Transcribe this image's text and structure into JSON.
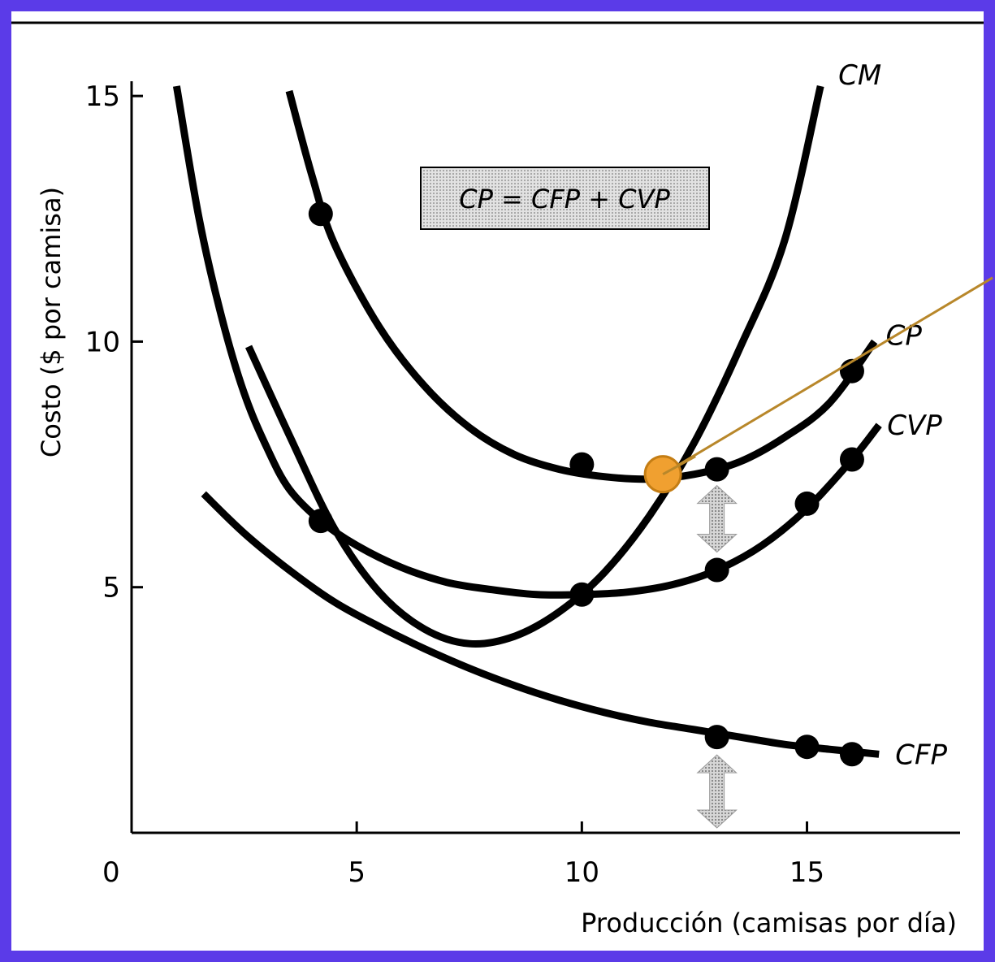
{
  "chart_data": {
    "type": "line",
    "xlabel": "Producción (camisas por día)",
    "ylabel": "Costo ($ por camisa)",
    "origin_label": "0",
    "xlim": [
      0,
      18.4
    ],
    "ylim": [
      0,
      15.3
    ],
    "xticks": [
      5,
      10,
      15
    ],
    "yticks": [
      5,
      10,
      15
    ],
    "xtick_labels": [
      "5",
      "10",
      "15"
    ],
    "ytick_labels": [
      "5",
      "10",
      "15"
    ],
    "grid": false,
    "annotation": "CP = CFP + CVP",
    "highlight_point": {
      "x": 11.8,
      "y": 7.3,
      "color": "#f0a030"
    },
    "pointer_line_end": {
      "x": 18.4,
      "y": 11.3,
      "color": "#b8872a"
    },
    "arrow_marker_x": 13,
    "series": [
      {
        "name": "CM",
        "curve": [
          [
            2.6,
            9.9
          ],
          [
            3.5,
            8.1
          ],
          [
            4.5,
            6.2
          ],
          [
            5.5,
            4.9
          ],
          [
            6.5,
            4.15
          ],
          [
            7.5,
            3.85
          ],
          [
            8.5,
            4.0
          ],
          [
            9.5,
            4.5
          ],
          [
            10.5,
            5.3
          ],
          [
            11.5,
            6.45
          ],
          [
            12.5,
            7.95
          ],
          [
            13.5,
            9.85
          ],
          [
            14.5,
            12.05
          ],
          [
            15.3,
            15.2
          ]
        ],
        "points": []
      },
      {
        "name": "CP",
        "curve": [
          [
            3.5,
            15.1
          ],
          [
            4.0,
            13.4
          ],
          [
            4.5,
            12.0
          ],
          [
            5.5,
            10.3
          ],
          [
            6.5,
            9.1
          ],
          [
            7.5,
            8.25
          ],
          [
            8.5,
            7.7
          ],
          [
            9.5,
            7.4
          ],
          [
            10.5,
            7.25
          ],
          [
            11.5,
            7.2
          ],
          [
            12.5,
            7.3
          ],
          [
            13.5,
            7.55
          ],
          [
            14.5,
            8.05
          ],
          [
            15.5,
            8.75
          ],
          [
            16.5,
            10.0
          ]
        ],
        "points": [
          [
            4.2,
            12.6
          ],
          [
            10.0,
            7.5
          ],
          [
            13.0,
            7.4
          ],
          [
            16.0,
            9.4
          ]
        ]
      },
      {
        "name": "CVP",
        "curve": [
          [
            1.0,
            15.2
          ],
          [
            1.5,
            12.5
          ],
          [
            2.0,
            10.5
          ],
          [
            2.5,
            8.95
          ],
          [
            3.0,
            7.85
          ],
          [
            3.5,
            7.0
          ],
          [
            4.2,
            6.35
          ],
          [
            5.0,
            5.85
          ],
          [
            6.0,
            5.4
          ],
          [
            7.0,
            5.1
          ],
          [
            8.0,
            4.95
          ],
          [
            9.0,
            4.85
          ],
          [
            10.0,
            4.85
          ],
          [
            11.0,
            4.9
          ],
          [
            12.0,
            5.05
          ],
          [
            13.0,
            5.35
          ],
          [
            14.0,
            5.85
          ],
          [
            15.0,
            6.6
          ],
          [
            16.0,
            7.6
          ],
          [
            16.6,
            8.3
          ]
        ],
        "points": [
          [
            4.2,
            6.35
          ],
          [
            10.0,
            4.85
          ],
          [
            13.0,
            5.35
          ],
          [
            15.0,
            6.7
          ],
          [
            16.0,
            7.6
          ]
        ]
      },
      {
        "name": "CFP",
        "curve": [
          [
            1.6,
            6.9
          ],
          [
            2.5,
            6.1
          ],
          [
            3.5,
            5.35
          ],
          [
            4.5,
            4.7
          ],
          [
            5.5,
            4.2
          ],
          [
            6.5,
            3.75
          ],
          [
            7.5,
            3.35
          ],
          [
            8.5,
            3.0
          ],
          [
            9.5,
            2.7
          ],
          [
            10.5,
            2.45
          ],
          [
            11.5,
            2.25
          ],
          [
            12.5,
            2.1
          ],
          [
            13.5,
            1.95
          ],
          [
            14.5,
            1.8
          ],
          [
            15.5,
            1.7
          ],
          [
            16.6,
            1.6
          ]
        ],
        "points": [
          [
            13.0,
            1.95
          ],
          [
            15.0,
            1.75
          ],
          [
            16.0,
            1.6
          ]
        ]
      }
    ]
  }
}
